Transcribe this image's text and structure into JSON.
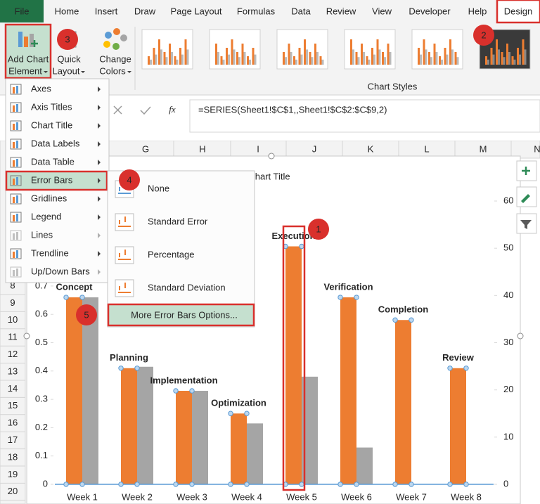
{
  "ribbon": {
    "tabs": [
      "File",
      "Home",
      "Insert",
      "Draw",
      "Page Layout",
      "Formulas",
      "Data",
      "Review",
      "View",
      "Developer",
      "Help",
      "Design"
    ],
    "add_chart_element": [
      "Add Chart",
      "Element"
    ],
    "quick_layout": [
      "Quick",
      "Layout"
    ],
    "change_colors": [
      "Change",
      "Colors"
    ],
    "group_label": "Chart Styles"
  },
  "formula_bar": {
    "fx": "fx",
    "formula": "=SERIES(Sheet1!$C$1,,Sheet1!$C$2:$C$9,2)"
  },
  "columns": [
    "G",
    "H",
    "I",
    "J",
    "K",
    "L",
    "M",
    "N"
  ],
  "rows": [
    8,
    9,
    10,
    11,
    12,
    13,
    14,
    15,
    16,
    17,
    18,
    19,
    20
  ],
  "menu": {
    "items": [
      "Axes",
      "Axis Titles",
      "Chart Title",
      "Data Labels",
      "Data Table",
      "Error Bars",
      "Gridlines",
      "Legend",
      "Lines",
      "Trendline",
      "Up/Down Bars"
    ]
  },
  "submenu": {
    "items": [
      "None",
      "Standard Error",
      "Percentage",
      "Standard Deviation"
    ],
    "more": "More Error Bars Options..."
  },
  "callouts": [
    1,
    2,
    3,
    4,
    5
  ],
  "chart_data": {
    "type": "bar",
    "title": "Chart Title",
    "categories": [
      "Week 1",
      "Week 2",
      "Week 3",
      "Week 4",
      "Week 5",
      "Week 6",
      "Week 7",
      "Week 8"
    ],
    "series": [
      {
        "color": "#ed7d31",
        "values": [
          0.66,
          0.41,
          0.33,
          0.25,
          0.84,
          0.66,
          0.58,
          0.41
        ],
        "point_labels": [
          "Concept",
          "Planning",
          "Implementation",
          "Optimization",
          "Execution",
          "Verification",
          "Completion",
          "Review"
        ]
      },
      {
        "color": "#a5a5a5",
        "values": [
          0.66,
          0.415,
          0.33,
          0.215,
          0.38,
          0.13,
          null,
          null
        ]
      }
    ],
    "ylim": [
      0,
      1
    ],
    "yticks": [
      0,
      0.1,
      0.2,
      0.3,
      0.4,
      0.5,
      0.6,
      0.7
    ],
    "y2lim": [
      0,
      60
    ],
    "y2ticks": [
      0,
      10,
      20,
      30,
      40,
      50,
      60
    ]
  }
}
